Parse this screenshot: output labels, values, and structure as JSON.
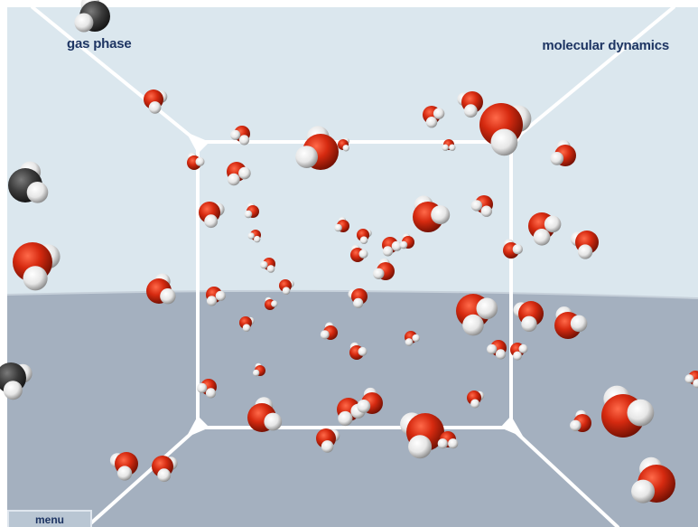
{
  "labels": {
    "phase": "gas phase",
    "method": "molecular dynamics"
  },
  "menu": {
    "label": "menu"
  },
  "colors": {
    "sky": "#dbe7ee",
    "floor": "#a4b0bf",
    "box_edge": "#ffffff",
    "oxygen": "#d62a10",
    "hydrogen": "#f2f2f2",
    "text": "#1e3563"
  },
  "scene": {
    "box_edges": "white",
    "molecule": "water",
    "atoms": [
      "oxygen",
      "hydrogen"
    ]
  }
}
